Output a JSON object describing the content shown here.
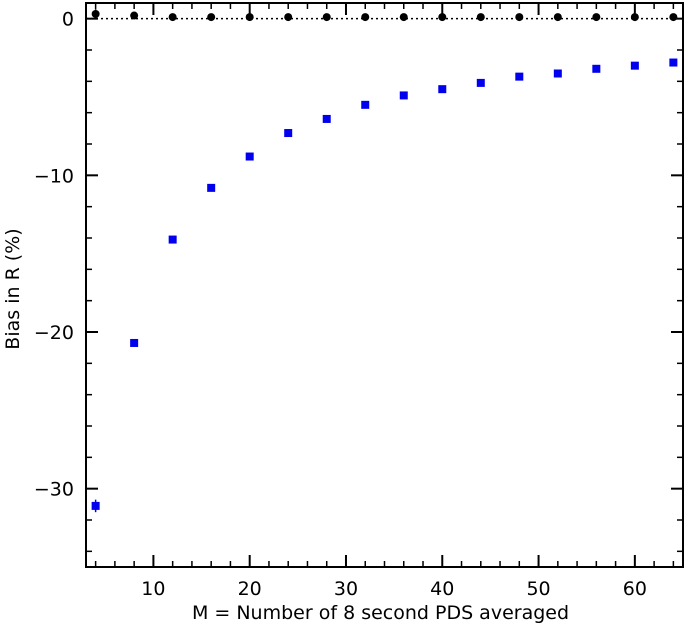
{
  "chart_data": {
    "type": "scatter",
    "xlabel": "M = Number of 8 second PDS averaged",
    "ylabel": "Bias in R (%)",
    "xlim": [
      3,
      65
    ],
    "ylim": [
      -35,
      1
    ],
    "x_ticks": [
      10,
      20,
      30,
      40,
      50,
      60
    ],
    "y_ticks": [
      0,
      -10,
      -20,
      -30
    ],
    "x_minor_step": 2,
    "y_minor_step": 2,
    "grid": false,
    "reference_line": {
      "y": 0,
      "style": "dotted"
    },
    "series": [
      {
        "marker": "circle",
        "color": "#000000",
        "x": [
          4,
          8,
          12,
          16,
          20,
          24,
          28,
          32,
          36,
          40,
          44,
          48,
          52,
          56,
          60,
          64
        ],
        "y": [
          0.3,
          0.2,
          0.1,
          0.1,
          0.1,
          0.1,
          0.1,
          0.1,
          0.1,
          0.1,
          0.1,
          0.1,
          0.1,
          0.1,
          0.1,
          0.1
        ],
        "yerr": [
          0.3,
          0.2,
          0.2,
          0.2,
          0.2,
          0.2,
          0.2,
          0.2,
          0.2,
          0.2,
          0.2,
          0.2,
          0.2,
          0.2,
          0.2,
          0.2
        ]
      },
      {
        "marker": "square",
        "color": "#0000ee",
        "x": [
          4,
          8,
          12,
          16,
          20,
          24,
          28,
          32,
          36,
          40,
          44,
          48,
          52,
          56,
          60,
          64
        ],
        "y": [
          -31.1,
          -20.7,
          -14.1,
          -10.8,
          -8.8,
          -7.3,
          -6.4,
          -5.5,
          -4.9,
          -4.5,
          -4.1,
          -3.7,
          -3.5,
          -3.2,
          -3.0,
          -2.8
        ],
        "yerr": [
          0.4,
          0.2,
          0.15,
          0.1,
          0.1,
          0.1,
          0.1,
          0.1,
          0.1,
          0.1,
          0.1,
          0.1,
          0.1,
          0.1,
          0.1,
          0.1
        ]
      }
    ]
  }
}
